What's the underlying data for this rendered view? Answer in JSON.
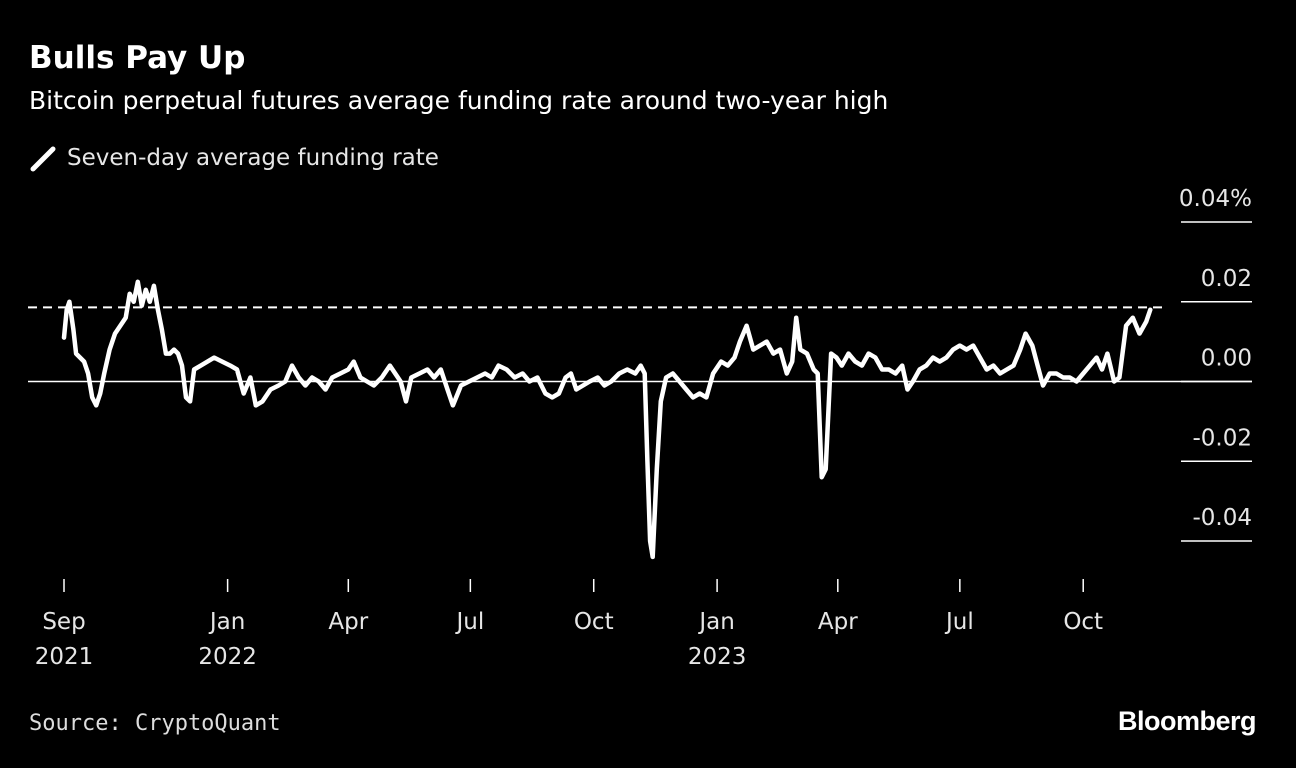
{
  "header": {
    "title": "Bulls Pay Up",
    "subtitle": "Bitcoin perpetual futures average funding rate around two-year high"
  },
  "legend": {
    "label": "Seven-day average funding rate"
  },
  "footer": {
    "source": "Source: CryptoQuant",
    "brand": "Bloomberg"
  },
  "colors": {
    "background": "#000000",
    "line": "#ffffff",
    "text": "#e6e6e6"
  },
  "chart_data": {
    "type": "line",
    "title": "Bulls Pay Up",
    "subtitle": "Bitcoin perpetual futures average funding rate around two-year high",
    "xlabel": "",
    "ylabel": "",
    "y_ticks": [
      {
        "value": 0.04,
        "label": "0.04%"
      },
      {
        "value": 0.02,
        "label": "0.02"
      },
      {
        "value": 0.0,
        "label": "0.00"
      },
      {
        "value": -0.02,
        "label": "-0.02"
      },
      {
        "value": -0.04,
        "label": "-0.04"
      }
    ],
    "ylim": [
      -0.046,
      0.04
    ],
    "xlim": [
      "2021-09-01",
      "2023-11-28"
    ],
    "x_ticks": [
      {
        "date": "2021-09-01",
        "line1": "Sep",
        "line2": "2021"
      },
      {
        "date": "2022-01-01",
        "line1": "Jan",
        "line2": "2022"
      },
      {
        "date": "2022-04-01",
        "line1": "Apr",
        "line2": ""
      },
      {
        "date": "2022-07-01",
        "line1": "Jul",
        "line2": ""
      },
      {
        "date": "2022-10-01",
        "line1": "Oct",
        "line2": ""
      },
      {
        "date": "2023-01-01",
        "line1": "Jan",
        "line2": "2023"
      },
      {
        "date": "2023-04-01",
        "line1": "Apr",
        "line2": ""
      },
      {
        "date": "2023-07-01",
        "line1": "Jul",
        "line2": ""
      },
      {
        "date": "2023-10-01",
        "line1": "Oct",
        "line2": ""
      }
    ],
    "reference_lines": [
      {
        "value": 0.0,
        "style": "solid"
      },
      {
        "value": 0.0186,
        "style": "dashed"
      }
    ],
    "grid": false,
    "legend_position": "top-left",
    "series": [
      {
        "name": "Seven-day average funding rate",
        "points": [
          [
            "2021-09-01",
            0.011
          ],
          [
            "2021-09-03",
            0.018
          ],
          [
            "2021-09-05",
            0.02
          ],
          [
            "2021-09-08",
            0.013
          ],
          [
            "2021-09-10",
            0.007
          ],
          [
            "2021-09-13",
            0.006
          ],
          [
            "2021-09-16",
            0.005
          ],
          [
            "2021-09-19",
            0.002
          ],
          [
            "2021-09-22",
            -0.004
          ],
          [
            "2021-09-25",
            -0.006
          ],
          [
            "2021-09-28",
            -0.003
          ],
          [
            "2021-10-01",
            0.002
          ],
          [
            "2021-10-05",
            0.008
          ],
          [
            "2021-10-09",
            0.012
          ],
          [
            "2021-10-13",
            0.014
          ],
          [
            "2021-10-17",
            0.016
          ],
          [
            "2021-10-20",
            0.022
          ],
          [
            "2021-10-23",
            0.02
          ],
          [
            "2021-10-26",
            0.025
          ],
          [
            "2021-10-29",
            0.019
          ],
          [
            "2021-11-01",
            0.023
          ],
          [
            "2021-11-04",
            0.02
          ],
          [
            "2021-11-07",
            0.024
          ],
          [
            "2021-11-10",
            0.018
          ],
          [
            "2021-11-13",
            0.013
          ],
          [
            "2021-11-16",
            0.007
          ],
          [
            "2021-11-19",
            0.007
          ],
          [
            "2021-11-22",
            0.008
          ],
          [
            "2021-11-25",
            0.007
          ],
          [
            "2021-11-28",
            0.004
          ],
          [
            "2021-12-01",
            -0.004
          ],
          [
            "2021-12-04",
            -0.005
          ],
          [
            "2021-12-07",
            0.003
          ],
          [
            "2021-12-12",
            0.004
          ],
          [
            "2021-12-17",
            0.005
          ],
          [
            "2021-12-22",
            0.006
          ],
          [
            "2021-12-28",
            0.005
          ],
          [
            "2022-01-03",
            0.004
          ],
          [
            "2022-01-08",
            0.003
          ],
          [
            "2022-01-13",
            -0.003
          ],
          [
            "2022-01-18",
            0.001
          ],
          [
            "2022-01-22",
            -0.006
          ],
          [
            "2022-01-27",
            -0.005
          ],
          [
            "2022-02-02",
            -0.002
          ],
          [
            "2022-02-08",
            -0.001
          ],
          [
            "2022-02-13",
            0.0
          ],
          [
            "2022-02-18",
            0.004
          ],
          [
            "2022-02-23",
            0.001
          ],
          [
            "2022-02-28",
            -0.001
          ],
          [
            "2022-03-05",
            0.001
          ],
          [
            "2022-03-10",
            0.0
          ],
          [
            "2022-03-15",
            -0.002
          ],
          [
            "2022-03-20",
            0.001
          ],
          [
            "2022-03-26",
            0.002
          ],
          [
            "2022-04-01",
            0.003
          ],
          [
            "2022-04-05",
            0.005
          ],
          [
            "2022-04-10",
            0.001
          ],
          [
            "2022-04-15",
            0.0
          ],
          [
            "2022-04-20",
            -0.001
          ],
          [
            "2022-04-26",
            0.001
          ],
          [
            "2022-05-02",
            0.004
          ],
          [
            "2022-05-06",
            0.002
          ],
          [
            "2022-05-10",
            0.0
          ],
          [
            "2022-05-14",
            -0.005
          ],
          [
            "2022-05-18",
            0.001
          ],
          [
            "2022-05-24",
            0.002
          ],
          [
            "2022-05-30",
            0.003
          ],
          [
            "2022-06-04",
            0.001
          ],
          [
            "2022-06-09",
            0.003
          ],
          [
            "2022-06-14",
            -0.002
          ],
          [
            "2022-06-18",
            -0.006
          ],
          [
            "2022-06-24",
            -0.001
          ],
          [
            "2022-06-30",
            0.0
          ],
          [
            "2022-07-06",
            0.001
          ],
          [
            "2022-07-12",
            0.002
          ],
          [
            "2022-07-17",
            0.001
          ],
          [
            "2022-07-22",
            0.004
          ],
          [
            "2022-07-28",
            0.003
          ],
          [
            "2022-08-03",
            0.001
          ],
          [
            "2022-08-09",
            0.002
          ],
          [
            "2022-08-14",
            0.0
          ],
          [
            "2022-08-20",
            0.001
          ],
          [
            "2022-08-26",
            -0.003
          ],
          [
            "2022-08-31",
            -0.004
          ],
          [
            "2022-09-05",
            -0.003
          ],
          [
            "2022-09-10",
            0.001
          ],
          [
            "2022-09-14",
            0.002
          ],
          [
            "2022-09-18",
            -0.002
          ],
          [
            "2022-09-23",
            -0.001
          ],
          [
            "2022-09-28",
            0.0
          ],
          [
            "2022-10-04",
            0.001
          ],
          [
            "2022-10-09",
            -0.001
          ],
          [
            "2022-10-14",
            0.0
          ],
          [
            "2022-10-20",
            0.002
          ],
          [
            "2022-10-26",
            0.003
          ],
          [
            "2022-11-01",
            0.002
          ],
          [
            "2022-11-05",
            0.004
          ],
          [
            "2022-11-08",
            0.002
          ],
          [
            "2022-11-10",
            -0.02
          ],
          [
            "2022-11-12",
            -0.04
          ],
          [
            "2022-11-14",
            -0.044
          ],
          [
            "2022-11-17",
            -0.022
          ],
          [
            "2022-11-20",
            -0.005
          ],
          [
            "2022-11-24",
            0.001
          ],
          [
            "2022-11-29",
            0.002
          ],
          [
            "2022-12-04",
            0.0
          ],
          [
            "2022-12-09",
            -0.002
          ],
          [
            "2022-12-14",
            -0.004
          ],
          [
            "2022-12-19",
            -0.003
          ],
          [
            "2022-12-24",
            -0.004
          ],
          [
            "2022-12-29",
            0.002
          ],
          [
            "2023-01-04",
            0.005
          ],
          [
            "2023-01-09",
            0.004
          ],
          [
            "2023-01-14",
            0.006
          ],
          [
            "2023-01-18",
            0.01
          ],
          [
            "2023-01-23",
            0.014
          ],
          [
            "2023-01-28",
            0.008
          ],
          [
            "2023-02-02",
            0.009
          ],
          [
            "2023-02-07",
            0.01
          ],
          [
            "2023-02-12",
            0.007
          ],
          [
            "2023-02-17",
            0.008
          ],
          [
            "2023-02-22",
            0.002
          ],
          [
            "2023-02-26",
            0.005
          ],
          [
            "2023-03-01",
            0.016
          ],
          [
            "2023-03-04",
            0.008
          ],
          [
            "2023-03-09",
            0.007
          ],
          [
            "2023-03-14",
            0.003
          ],
          [
            "2023-03-17",
            0.002
          ],
          [
            "2023-03-20",
            -0.024
          ],
          [
            "2023-03-23",
            -0.022
          ],
          [
            "2023-03-27",
            0.007
          ],
          [
            "2023-03-31",
            0.006
          ],
          [
            "2023-04-04",
            0.004
          ],
          [
            "2023-04-09",
            0.007
          ],
          [
            "2023-04-14",
            0.005
          ],
          [
            "2023-04-19",
            0.004
          ],
          [
            "2023-04-24",
            0.007
          ],
          [
            "2023-04-29",
            0.006
          ],
          [
            "2023-05-04",
            0.003
          ],
          [
            "2023-05-09",
            0.003
          ],
          [
            "2023-05-14",
            0.002
          ],
          [
            "2023-05-19",
            0.004
          ],
          [
            "2023-05-23",
            -0.002
          ],
          [
            "2023-05-27",
            0.0
          ],
          [
            "2023-06-01",
            0.003
          ],
          [
            "2023-06-06",
            0.004
          ],
          [
            "2023-06-11",
            0.006
          ],
          [
            "2023-06-16",
            0.005
          ],
          [
            "2023-06-21",
            0.006
          ],
          [
            "2023-06-26",
            0.008
          ],
          [
            "2023-07-01",
            0.009
          ],
          [
            "2023-07-06",
            0.008
          ],
          [
            "2023-07-11",
            0.009
          ],
          [
            "2023-07-16",
            0.006
          ],
          [
            "2023-07-21",
            0.003
          ],
          [
            "2023-07-26",
            0.004
          ],
          [
            "2023-07-31",
            0.002
          ],
          [
            "2023-08-05",
            0.003
          ],
          [
            "2023-08-10",
            0.004
          ],
          [
            "2023-08-15",
            0.008
          ],
          [
            "2023-08-19",
            0.012
          ],
          [
            "2023-08-24",
            0.009
          ],
          [
            "2023-08-28",
            0.004
          ],
          [
            "2023-09-01",
            -0.001
          ],
          [
            "2023-09-06",
            0.002
          ],
          [
            "2023-09-11",
            0.002
          ],
          [
            "2023-09-16",
            0.001
          ],
          [
            "2023-09-21",
            0.001
          ],
          [
            "2023-09-26",
            0.0
          ],
          [
            "2023-10-01",
            0.002
          ],
          [
            "2023-10-06",
            0.004
          ],
          [
            "2023-10-11",
            0.006
          ],
          [
            "2023-10-15",
            0.003
          ],
          [
            "2023-10-19",
            0.007
          ],
          [
            "2023-10-24",
            0.0
          ],
          [
            "2023-10-28",
            0.001
          ],
          [
            "2023-11-02",
            0.014
          ],
          [
            "2023-11-07",
            0.016
          ],
          [
            "2023-11-12",
            0.012
          ],
          [
            "2023-11-17",
            0.015
          ],
          [
            "2023-11-20",
            0.018
          ]
        ]
      }
    ]
  }
}
